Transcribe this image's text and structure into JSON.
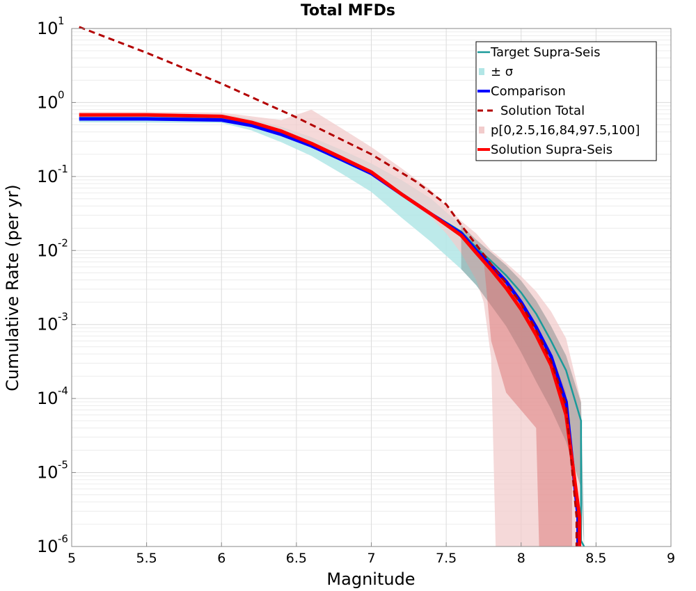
{
  "chart_data": {
    "type": "line",
    "title": "Total MFDs",
    "xlabel": "Magnitude",
    "ylabel": "Cumulative Rate (per yr)",
    "xlim": [
      5,
      9
    ],
    "ylim_log10": [
      -6,
      1
    ],
    "yscale": "log",
    "grid": true,
    "xticks": [
      5,
      5.5,
      6,
      6.5,
      7,
      7.5,
      8,
      8.5,
      9
    ],
    "xtick_labels": [
      "5",
      "5.5",
      "6",
      "6.5",
      "7",
      "7.5",
      "8",
      "8.5",
      "9"
    ],
    "yticks": [
      {
        "base": "10",
        "exp": "1",
        "log": 1
      },
      {
        "base": "10",
        "exp": "0",
        "log": 0
      },
      {
        "base": "10",
        "exp": "-1",
        "log": -1
      },
      {
        "base": "10",
        "exp": "-2",
        "log": -2
      },
      {
        "base": "10",
        "exp": "-3",
        "log": -3
      },
      {
        "base": "10",
        "exp": "-4",
        "log": -4
      },
      {
        "base": "10",
        "exp": "-5",
        "log": -5
      },
      {
        "base": "10",
        "exp": "-6",
        "log": -6
      }
    ],
    "legend_position": "top-right",
    "legend": [
      {
        "label": "Target Supra-Seis",
        "kind": "line",
        "color": "#1a9a9a"
      },
      {
        "label": "± σ",
        "kind": "patch",
        "color": "#b2e6e6"
      },
      {
        "label": "Comparison",
        "kind": "line-thick",
        "color": "#0000ff"
      },
      {
        "label": "Solution Total",
        "kind": "dashed",
        "color": "#b30000"
      },
      {
        "label": "p[0,2.5,16,84,97.5,100]",
        "kind": "patch",
        "color": "#f2cccc"
      },
      {
        "label": "Solution Supra-Seis",
        "kind": "line-thick",
        "color": "#ff0000"
      }
    ],
    "series": [
      {
        "name": "Target Supra-Seis",
        "style": "line",
        "color": "#1a9a9a",
        "x": [
          5.05,
          5.5,
          6.0,
          6.2,
          6.4,
          6.6,
          6.8,
          7.0,
          7.2,
          7.4,
          7.6,
          7.7,
          7.8,
          7.9,
          8.0,
          8.1,
          8.2,
          8.3,
          8.4,
          8.4,
          8.42
        ],
        "y": [
          0.62,
          0.62,
          0.6,
          0.5,
          0.38,
          0.26,
          0.17,
          0.11,
          0.06,
          0.032,
          0.018,
          0.011,
          0.0072,
          0.0046,
          0.0027,
          0.0014,
          0.0006,
          0.00024,
          5e-05,
          1.2e-06,
          1e-06
        ]
      },
      {
        "name": "± σ",
        "style": "band",
        "color": "#b2e6e6",
        "x": [
          5.05,
          6.0,
          6.2,
          6.4,
          6.6,
          6.8,
          7.0,
          7.2,
          7.4,
          7.5,
          7.6,
          7.7,
          7.8,
          7.9,
          8.0,
          8.1,
          8.2,
          8.3,
          8.4,
          8.42
        ],
        "lower": [
          0.54,
          0.53,
          0.42,
          0.29,
          0.19,
          0.11,
          0.062,
          0.028,
          0.013,
          0.0085,
          0.0056,
          0.0034,
          0.0018,
          0.00095,
          0.00042,
          0.00017,
          7.2e-05,
          2.6e-05,
          6.2e-06,
          1e-06
        ],
        "upper": [
          0.71,
          0.7,
          0.6,
          0.47,
          0.34,
          0.23,
          0.15,
          0.09,
          0.05,
          0.033,
          0.022,
          0.014,
          0.0094,
          0.0063,
          0.0039,
          0.0021,
          0.00095,
          0.00038,
          8.8e-05,
          1.4e-06
        ]
      },
      {
        "name": "Comparison",
        "style": "line-thick",
        "color": "#0000ff",
        "x": [
          5.05,
          5.5,
          6.0,
          6.2,
          6.4,
          6.6,
          6.8,
          7.0,
          7.2,
          7.4,
          7.6,
          7.7,
          7.8,
          7.9,
          8.0,
          8.1,
          8.2,
          8.3,
          8.38,
          8.38
        ],
        "y": [
          0.6,
          0.6,
          0.58,
          0.49,
          0.37,
          0.26,
          0.17,
          0.11,
          0.058,
          0.031,
          0.017,
          0.01,
          0.0063,
          0.0038,
          0.002,
          0.00092,
          0.00037,
          9e-05,
          2.5e-06,
          1e-06
        ]
      },
      {
        "name": "Solution Total",
        "style": "dashed",
        "color": "#b30000",
        "x": [
          5.05,
          5.5,
          6.0,
          6.5,
          7.0,
          7.3,
          7.5,
          7.6,
          7.7,
          7.8,
          7.9,
          8.0,
          8.1,
          8.2,
          8.3,
          8.37,
          8.37
        ],
        "y": [
          10.5,
          4.7,
          1.8,
          0.63,
          0.2,
          0.085,
          0.042,
          0.022,
          0.012,
          0.0065,
          0.0036,
          0.0019,
          0.00085,
          0.00032,
          8e-05,
          2.5e-06,
          1e-06
        ]
      },
      {
        "name": "p[0,2.5,16,84,97.5,100]",
        "style": "band",
        "color": "#f2cccc",
        "x": [
          5.05,
          5.5,
          6.0,
          6.4,
          6.6,
          6.8,
          7.0,
          7.2,
          7.4,
          7.5,
          7.6,
          7.7,
          7.75,
          7.8,
          7.83,
          7.9,
          8.0,
          8.1,
          8.2,
          8.3,
          8.4
        ],
        "lower": [
          0.66,
          0.66,
          0.64,
          0.4,
          0.27,
          0.17,
          0.1,
          0.055,
          0.028,
          0.017,
          0.0092,
          0.004,
          0.002,
          0.00035,
          1e-06,
          1e-06,
          1e-06,
          1e-06,
          1e-06,
          1e-06,
          1e-06
        ],
        "upper": [
          0.75,
          0.75,
          0.73,
          0.58,
          0.8,
          0.45,
          0.25,
          0.13,
          0.065,
          0.04,
          0.025,
          0.017,
          0.013,
          0.01,
          0.009,
          0.0068,
          0.0045,
          0.0028,
          0.0015,
          0.00065,
          9.2e-05
        ]
      },
      {
        "name": "Solution Supra-Seis",
        "style": "line-thick",
        "color": "#ff0000",
        "x": [
          5.05,
          5.5,
          6.0,
          6.2,
          6.4,
          6.6,
          6.8,
          7.0,
          7.2,
          7.4,
          7.6,
          7.7,
          7.8,
          7.9,
          8.0,
          8.1,
          8.2,
          8.3,
          8.39,
          8.39
        ],
        "y": [
          0.68,
          0.68,
          0.65,
          0.54,
          0.41,
          0.28,
          0.18,
          0.115,
          0.058,
          0.031,
          0.016,
          0.0093,
          0.0055,
          0.0031,
          0.0016,
          0.00072,
          0.00028,
          6e-05,
          2.5e-06,
          1e-06
        ]
      }
    ]
  }
}
